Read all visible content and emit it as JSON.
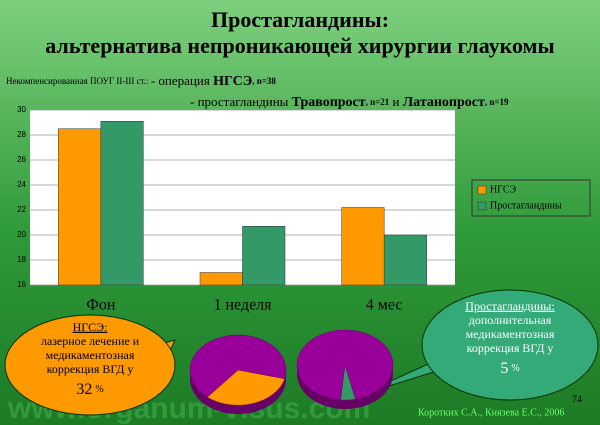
{
  "slide": {
    "title_lines": [
      "Простагландины:",
      "альтернатива непроникающей хирургии глаукомы"
    ],
    "subtitle_1": [
      "Некомпенсированная ПОУГ II-III ст.: ",
      "- операция ",
      "НГСЭ",
      ", n=38"
    ],
    "subtitle_2": [
      "- простагландины ",
      "Травопрост",
      ", n=21",
      " и ",
      "Латанопрост",
      ", n=19"
    ],
    "callouts": [
      {
        "lines": [
          "НГСЭ:",
          "лазерное лечение и",
          "медикаментозная",
          "коррекция ВГД у"
        ],
        "value_unit": "%"
      },
      {
        "lines": [
          "Простагландины:",
          "дополнительная",
          "медикаментозная",
          "коррекция ВГД у"
        ],
        "value_unit": "%"
      }
    ],
    "watermark": "www.organum-visus.com",
    "authors": "Коротких С.А., Князева Е.С., 2006",
    "page_number": "74"
  },
  "chart_data": [
    {
      "type": "bar",
      "categories": [
        "Фон",
        "1 неделя",
        "4 мес"
      ],
      "series": [
        {
          "name": "НГСЭ",
          "color": "#ff9900",
          "values": [
            28.5,
            17,
            22.2
          ]
        },
        {
          "name": "Простагландины",
          "color": "#339966",
          "values": [
            29.1,
            20.7,
            20
          ]
        }
      ],
      "ylim": [
        16,
        30
      ],
      "yticks": [
        16,
        18,
        20,
        22,
        24,
        26,
        28,
        30
      ],
      "grid": true,
      "legend": "right"
    },
    {
      "type": "pie",
      "values": [
        32,
        68
      ],
      "colors": [
        "#ff9900",
        "#990099"
      ]
    },
    {
      "type": "pie",
      "values": [
        5,
        95
      ],
      "colors": [
        "#339966",
        "#990099"
      ]
    }
  ]
}
